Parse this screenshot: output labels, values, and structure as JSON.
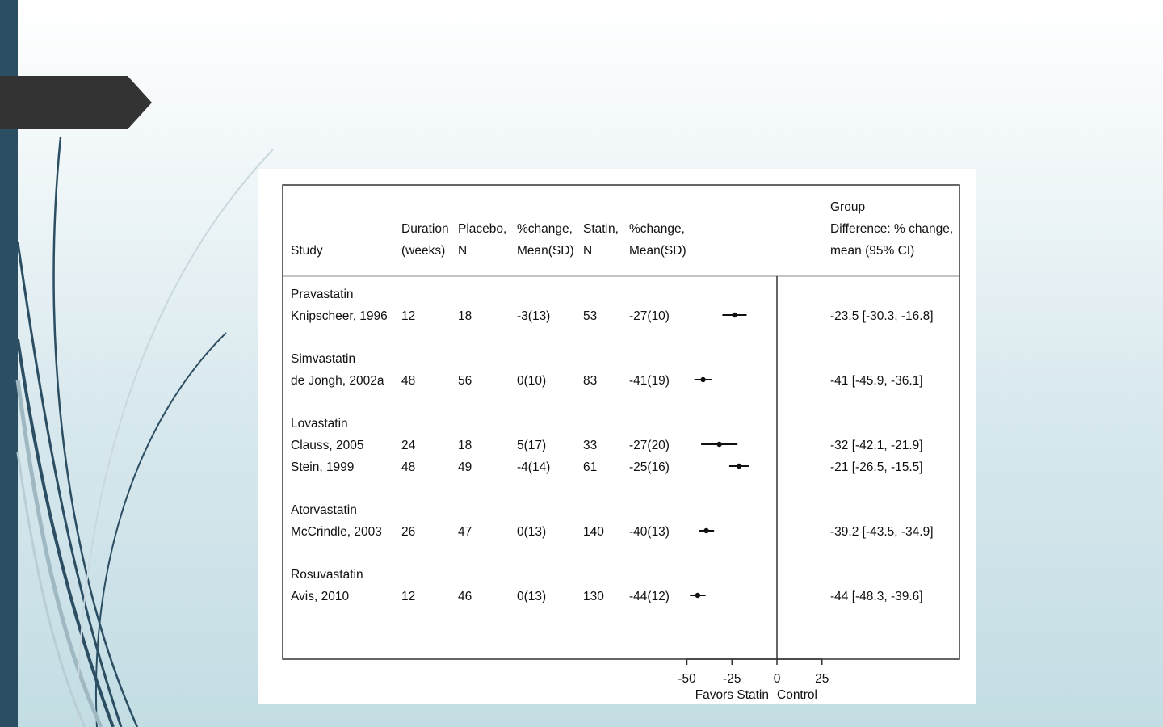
{
  "chart_data": {
    "type": "forest",
    "headers": {
      "study": [
        "Study"
      ],
      "duration": [
        "Duration",
        "(weeks)"
      ],
      "placebo_n": [
        "Placebo,",
        "N"
      ],
      "placebo_change": [
        "%change,",
        "Mean(SD)"
      ],
      "statin_n": [
        "Statin,",
        "N"
      ],
      "statin_change": [
        "%change,",
        "Mean(SD)"
      ],
      "difference": [
        "Group",
        "Difference: % change,",
        "mean (95% CI)"
      ]
    },
    "groups": [
      {
        "name": "Pravastatin",
        "studies": [
          {
            "study": "Knipscheer, 1996",
            "duration": "12",
            "placebo_n": "18",
            "placebo_change": "-3(13)",
            "statin_n": "53",
            "statin_change": "-27(10)",
            "estimate": -23.5,
            "ci_low": -30.3,
            "ci_high": -16.8,
            "ci_text": "-23.5 [-30.3, -16.8]"
          }
        ]
      },
      {
        "name": "Simvastatin",
        "studies": [
          {
            "study": "de Jongh, 2002a",
            "duration": "48",
            "placebo_n": "56",
            "placebo_change": "0(10)",
            "statin_n": "83",
            "statin_change": "-41(19)",
            "estimate": -41,
            "ci_low": -45.9,
            "ci_high": -36.1,
            "ci_text": "-41 [-45.9, -36.1]"
          }
        ]
      },
      {
        "name": "Lovastatin",
        "studies": [
          {
            "study": "Clauss, 2005",
            "duration": "24",
            "placebo_n": "18",
            "placebo_change": "5(17)",
            "statin_n": "33",
            "statin_change": "-27(20)",
            "estimate": -32,
            "ci_low": -42.1,
            "ci_high": -21.9,
            "ci_text": "-32 [-42.1, -21.9]"
          },
          {
            "study": "Stein, 1999",
            "duration": "48",
            "placebo_n": "49",
            "placebo_change": "-4(14)",
            "statin_n": "61",
            "statin_change": "-25(16)",
            "estimate": -21,
            "ci_low": -26.5,
            "ci_high": -15.5,
            "ci_text": "-21 [-26.5, -15.5]"
          }
        ]
      },
      {
        "name": "Atorvastatin",
        "studies": [
          {
            "study": "McCrindle, 2003",
            "duration": "26",
            "placebo_n": "47",
            "placebo_change": "0(13)",
            "statin_n": "140",
            "statin_change": "-40(13)",
            "estimate": -39.2,
            "ci_low": -43.5,
            "ci_high": -34.9,
            "ci_text": "-39.2 [-43.5, -34.9]"
          }
        ]
      },
      {
        "name": "Rosuvastatin",
        "studies": [
          {
            "study": "Avis, 2010",
            "duration": "12",
            "placebo_n": "46",
            "placebo_change": "0(13)",
            "statin_n": "130",
            "statin_change": "-44(12)",
            "estimate": -44,
            "ci_low": -48.3,
            "ci_high": -39.6,
            "ci_text": "-44 [-48.3, -39.6]"
          }
        ]
      }
    ],
    "x_ticks": [
      -50,
      -25,
      0,
      25
    ],
    "xlim": [
      -50,
      25
    ],
    "reference_line": 0,
    "axis_labels": {
      "left": "Favors Statin",
      "right": "Control"
    }
  },
  "colors": {
    "sidebar_strip": "#2c4e63",
    "title_tab": "#333333",
    "text": "#111111"
  }
}
